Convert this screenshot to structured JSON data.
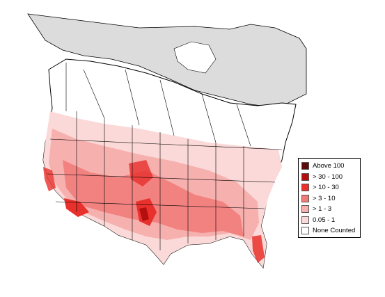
{
  "legend": {
    "items": [
      {
        "label": "Above 100",
        "color": "#5a0b0b"
      },
      {
        "label": "> 30 - 100",
        "color": "#b30f0f"
      },
      {
        "label": "> 10 - 30",
        "color": "#e8302c"
      },
      {
        "label": "> 3 - 10",
        "color": "#f07a78"
      },
      {
        "label": "> 1 - 3",
        "color": "#f6b0ae"
      },
      {
        "label": "0.05 - 1",
        "color": "#fbd9d8"
      },
      {
        "label": "None Counted",
        "color": "#ffffff"
      }
    ]
  },
  "colors": {
    "not_surveyed": "#dcdcdc",
    "border": "#000000"
  }
}
